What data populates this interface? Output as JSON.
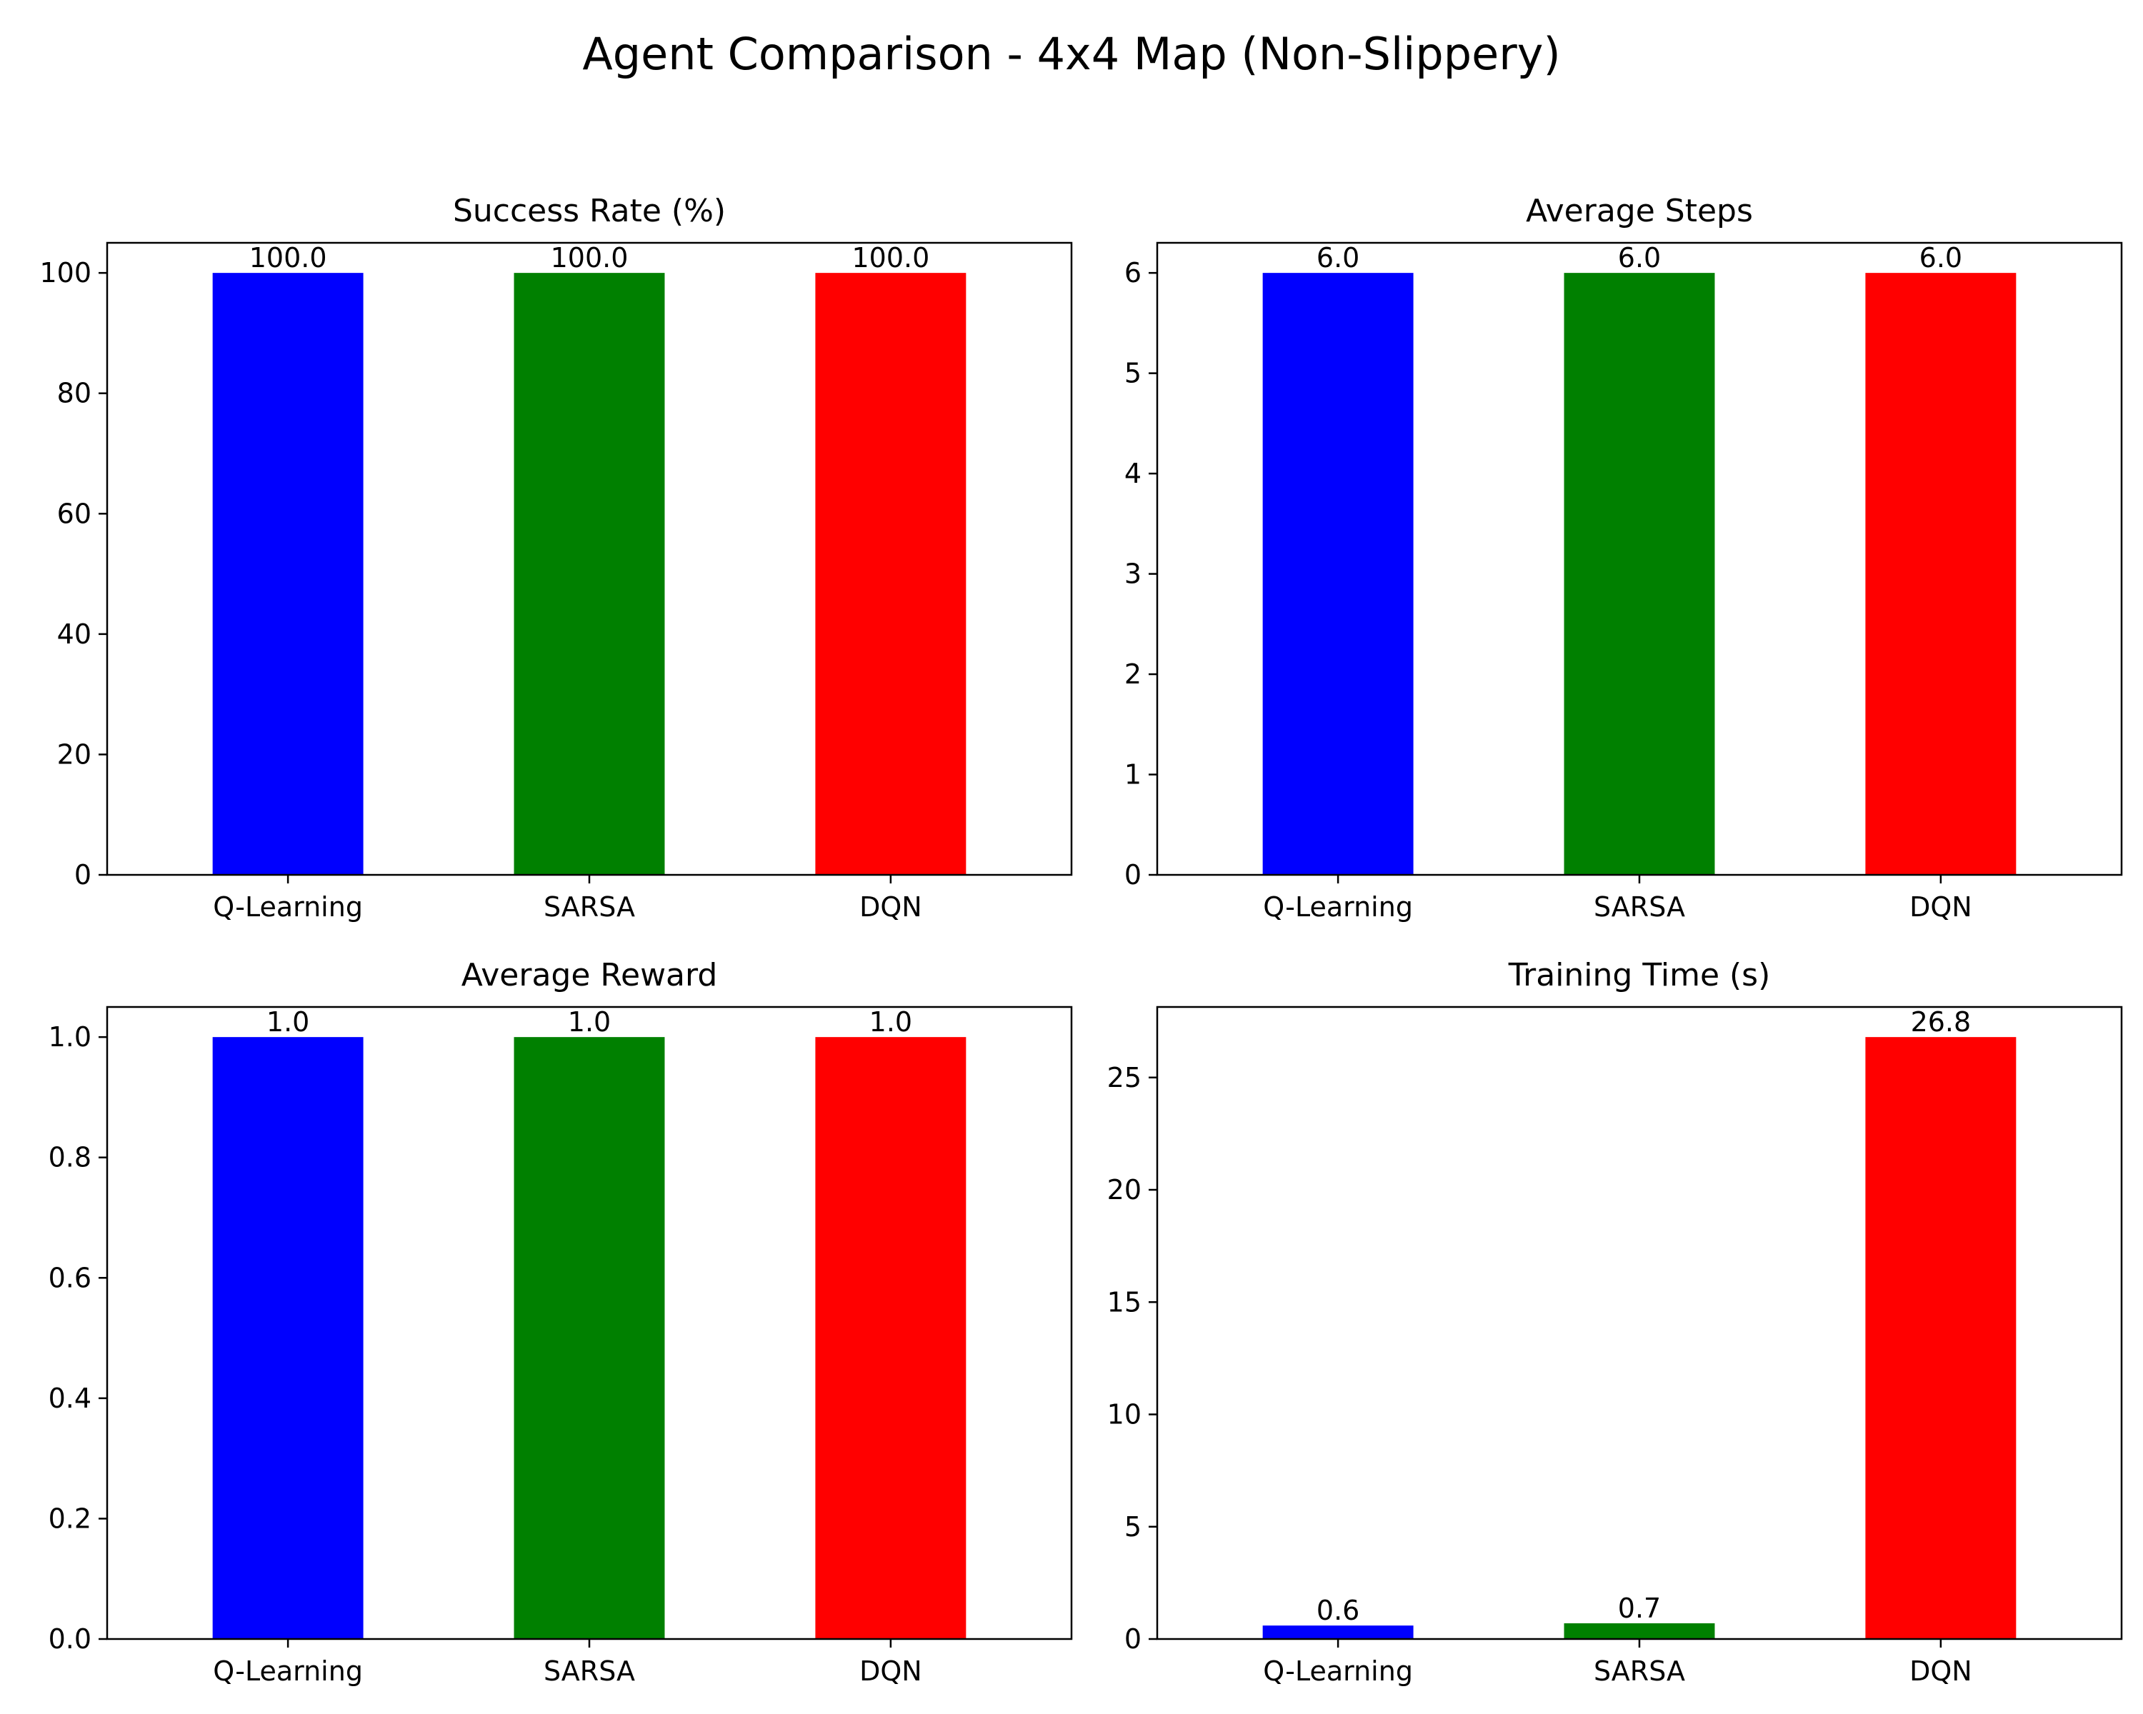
{
  "figure": {
    "suptitle": "Agent Comparison - 4x4 Map (Non-Slippery)"
  },
  "chart_data": [
    {
      "type": "bar",
      "title": "Success Rate (%)",
      "categories": [
        "Q-Learning",
        "SARSA",
        "DQN"
      ],
      "values": [
        100.0,
        100.0,
        100.0
      ],
      "value_labels": [
        "100.0",
        "100.0",
        "100.0"
      ],
      "colors": [
        "#0000ff",
        "#008000",
        "#ff0000"
      ],
      "ylim": [
        0,
        105
      ],
      "yticks": [
        0,
        20,
        40,
        60,
        80,
        100
      ],
      "ytick_labels": [
        "0",
        "20",
        "40",
        "60",
        "80",
        "100"
      ],
      "grid": false
    },
    {
      "type": "bar",
      "title": "Average Steps",
      "categories": [
        "Q-Learning",
        "SARSA",
        "DQN"
      ],
      "values": [
        6.0,
        6.0,
        6.0
      ],
      "value_labels": [
        "6.0",
        "6.0",
        "6.0"
      ],
      "colors": [
        "#0000ff",
        "#008000",
        "#ff0000"
      ],
      "ylim": [
        0,
        6.3
      ],
      "yticks": [
        0,
        1,
        2,
        3,
        4,
        5,
        6
      ],
      "ytick_labels": [
        "0",
        "1",
        "2",
        "3",
        "4",
        "5",
        "6"
      ],
      "grid": false
    },
    {
      "type": "bar",
      "title": "Average Reward",
      "categories": [
        "Q-Learning",
        "SARSA",
        "DQN"
      ],
      "values": [
        1.0,
        1.0,
        1.0
      ],
      "value_labels": [
        "1.0",
        "1.0",
        "1.0"
      ],
      "colors": [
        "#0000ff",
        "#008000",
        "#ff0000"
      ],
      "ylim": [
        0,
        1.05
      ],
      "yticks": [
        0,
        0.2,
        0.4,
        0.6,
        0.8,
        1.0
      ],
      "ytick_labels": [
        "0.0",
        "0.2",
        "0.4",
        "0.6",
        "0.8",
        "1.0"
      ],
      "grid": false
    },
    {
      "type": "bar",
      "title": "Training Time (s)",
      "categories": [
        "Q-Learning",
        "SARSA",
        "DQN"
      ],
      "values": [
        0.6,
        0.7,
        26.8
      ],
      "value_labels": [
        "0.6",
        "0.7",
        "26.8"
      ],
      "colors": [
        "#0000ff",
        "#008000",
        "#ff0000"
      ],
      "ylim": [
        0,
        28.14
      ],
      "yticks": [
        0,
        5,
        10,
        15,
        20,
        25
      ],
      "ytick_labels": [
        "0",
        "5",
        "10",
        "15",
        "20",
        "25"
      ],
      "grid": false
    }
  ]
}
